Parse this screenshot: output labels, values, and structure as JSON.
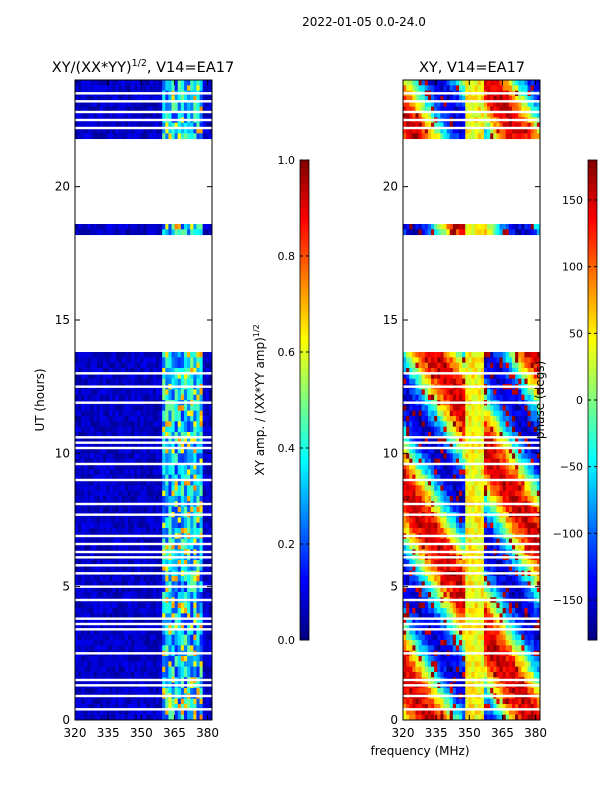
{
  "figure": {
    "suptitle": "2022-01-05 0.0-24.0",
    "shared_xlabel": "frequency (MHz)"
  },
  "chart_data": [
    {
      "type": "heatmap",
      "title": "XY/(XX*YY)",
      "title_exponent": "1/2",
      "title_suffix": ", V14=EA17",
      "xlabel": "",
      "ylabel": "UT (hours)",
      "xlim": [
        320,
        382
      ],
      "ylim": [
        0,
        24
      ],
      "xticks": [
        320,
        335,
        350,
        365,
        380
      ],
      "yticks": [
        0,
        5,
        10,
        15,
        20
      ],
      "colormap": "jet",
      "empty_ut_ranges": [
        [
          13.8,
          18.2
        ],
        [
          18.7,
          21.8
        ]
      ],
      "white_gap_rows_ut": [
        0.4,
        0.9,
        1.3,
        1.5,
        2.5,
        3.4,
        3.6,
        3.8,
        4.5,
        5.0,
        5.5,
        5.8,
        6.1,
        6.3,
        6.6,
        6.9,
        7.7,
        8.1,
        9.0,
        9.6,
        10.2,
        10.4,
        10.6,
        11.9,
        12.5,
        13.0,
        22.2,
        22.5,
        22.8,
        23.2,
        23.5
      ],
      "band_structure": {
        "bright_band_mhz": [
          360,
          378
        ],
        "bright_values_range": [
          0.15,
          0.5
        ],
        "background_values_range": [
          0.02,
          0.12
        ]
      },
      "colorbar": {
        "label": "XY amp. / (XX*YY amp)",
        "label_exponent": "1/2",
        "vmin": 0.0,
        "vmax": 1.0,
        "ticks": [
          "0.0",
          "0.2",
          "0.4",
          "0.6",
          "0.8",
          "1.0"
        ],
        "tick_values": [
          0.0,
          0.2,
          0.4,
          0.6,
          0.8,
          1.0
        ]
      }
    },
    {
      "type": "heatmap",
      "title": "XY, V14=EA17",
      "xlabel": "",
      "ylabel": "",
      "xlim": [
        320,
        382
      ],
      "ylim": [
        0,
        24
      ],
      "xticks": [
        320,
        335,
        350,
        365,
        380
      ],
      "yticks": [
        0,
        5,
        10,
        15,
        20
      ],
      "colormap": "jet",
      "empty_ut_ranges": [
        [
          13.8,
          18.2
        ],
        [
          18.7,
          21.8
        ]
      ],
      "white_gap_rows_ut": [
        0.4,
        0.9,
        1.3,
        1.5,
        2.5,
        3.4,
        3.6,
        3.8,
        4.5,
        5.0,
        5.5,
        5.8,
        6.1,
        6.3,
        6.6,
        6.9,
        7.7,
        8.1,
        9.0,
        9.6,
        10.2,
        10.4,
        10.6,
        11.9,
        12.5,
        13.0,
        22.2,
        22.5,
        22.8,
        23.2,
        23.5
      ],
      "band_structure": {
        "phase_wrap_by_frequency": true,
        "yellow_band_mhz": [
          348,
          356
        ],
        "value_range_degs": [
          -180,
          180
        ]
      },
      "colorbar": {
        "label": "phase (degs)",
        "vmin": -180,
        "vmax": 180,
        "ticks": [
          "−150",
          "−100",
          "−50",
          "0",
          "50",
          "100",
          "150"
        ],
        "tick_values": [
          -150,
          -100,
          -50,
          0,
          50,
          100,
          150
        ]
      }
    }
  ]
}
